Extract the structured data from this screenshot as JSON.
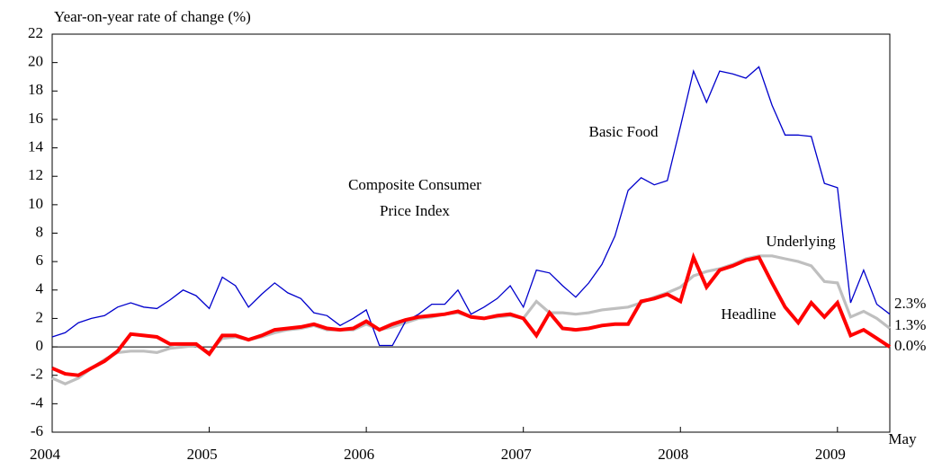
{
  "chart_data": {
    "type": "line",
    "y_axis_title": "Year-on-year rate of change (%)",
    "categories": [
      "2004",
      null,
      null,
      null,
      null,
      null,
      null,
      null,
      null,
      null,
      null,
      null,
      "2005",
      null,
      null,
      null,
      null,
      null,
      null,
      null,
      null,
      null,
      null,
      null,
      "2006",
      null,
      null,
      null,
      null,
      null,
      null,
      null,
      null,
      null,
      null,
      null,
      "2007",
      null,
      null,
      null,
      null,
      null,
      null,
      null,
      null,
      null,
      null,
      null,
      "2008",
      null,
      null,
      null,
      null,
      null,
      null,
      null,
      null,
      null,
      null,
      null,
      "2009",
      null,
      null,
      null,
      "May"
    ],
    "series": [
      {
        "name": "Underlying",
        "color": "#bfbfbf",
        "end_label": "1.3%",
        "values": [
          -2.2,
          -2.6,
          -2.2,
          -1.5,
          -0.9,
          -0.4,
          -0.3,
          -0.3,
          -0.4,
          -0.1,
          0.0,
          0.1,
          -0.4,
          0.6,
          0.7,
          0.5,
          0.7,
          1.0,
          1.2,
          1.3,
          1.5,
          1.2,
          1.2,
          1.2,
          1.6,
          1.2,
          1.4,
          1.7,
          2.0,
          2.1,
          2.3,
          2.4,
          2.1,
          2.0,
          2.1,
          2.2,
          2.0,
          3.2,
          2.4,
          2.4,
          2.3,
          2.4,
          2.6,
          2.7,
          2.8,
          3.1,
          3.5,
          3.8,
          4.2,
          5.0,
          5.3,
          5.5,
          5.8,
          6.2,
          6.4,
          6.4,
          6.2,
          6.0,
          5.7,
          4.6,
          4.5,
          2.1,
          2.5,
          2.0,
          1.3
        ]
      },
      {
        "name": "Basic Food",
        "color": "#0000cc",
        "end_label": "2.3%",
        "values": [
          0.7,
          1.0,
          1.7,
          2.0,
          2.2,
          2.8,
          3.1,
          2.8,
          2.7,
          3.3,
          4.0,
          3.6,
          2.7,
          4.9,
          4.3,
          2.8,
          3.7,
          4.5,
          3.8,
          3.4,
          2.4,
          2.2,
          1.5,
          2.0,
          2.6,
          0.1,
          0.1,
          1.8,
          2.3,
          3.0,
          3.0,
          4.0,
          2.3,
          2.8,
          3.4,
          4.3,
          2.8,
          5.4,
          5.2,
          4.3,
          3.5,
          4.5,
          5.8,
          7.8,
          11.0,
          11.9,
          11.4,
          11.7,
          15.5,
          19.4,
          17.2,
          19.4,
          19.2,
          18.9,
          19.7,
          17.0,
          14.9,
          14.9,
          14.8,
          11.5,
          11.2,
          3.1,
          5.4,
          3.0,
          2.3
        ]
      },
      {
        "name": "Headline",
        "color": "#ff0000",
        "end_label": "0.0%",
        "values": [
          -1.5,
          -1.9,
          -2.0,
          -1.5,
          -1.0,
          -0.3,
          0.9,
          0.8,
          0.7,
          0.2,
          0.2,
          0.2,
          -0.5,
          0.8,
          0.8,
          0.5,
          0.8,
          1.2,
          1.3,
          1.4,
          1.6,
          1.3,
          1.2,
          1.3,
          1.8,
          1.2,
          1.6,
          1.9,
          2.1,
          2.2,
          2.3,
          2.5,
          2.1,
          2.0,
          2.2,
          2.3,
          2.0,
          0.8,
          2.4,
          1.3,
          1.2,
          1.3,
          1.5,
          1.6,
          1.6,
          3.2,
          3.4,
          3.7,
          3.2,
          6.3,
          4.2,
          5.4,
          5.7,
          6.1,
          6.3,
          4.5,
          2.8,
          1.7,
          3.1,
          2.1,
          3.1,
          0.8,
          1.2,
          0.6,
          0.0
        ]
      }
    ],
    "annotations": [
      "Composite Consumer",
      "Price Index"
    ],
    "ylim": [
      -6,
      22
    ],
    "yticks": [
      -6,
      -4,
      -2,
      0,
      2,
      4,
      6,
      8,
      10,
      12,
      14,
      16,
      18,
      20,
      22
    ]
  }
}
